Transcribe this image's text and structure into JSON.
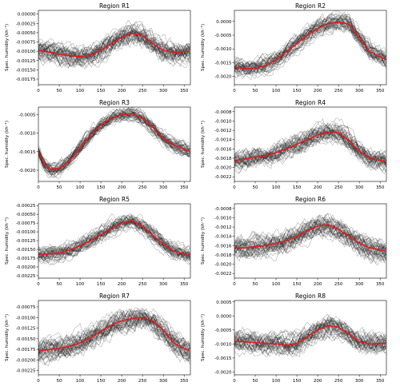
{
  "colors": {
    "ensemble": "#222222",
    "mean": "#e41a1c"
  },
  "chart_data": [
    {
      "type": "line",
      "title": "Region R1",
      "ylabel": "Spec. humidity (kh⁻¹)",
      "xlim": [
        0,
        365
      ],
      "ylim": [
        -0.0019,
        0.0001
      ],
      "xticks": [
        0,
        50,
        100,
        150,
        200,
        250,
        300,
        350
      ],
      "yticks": [
        0.0,
        -0.00025,
        -0.0005,
        -0.00075,
        -0.001,
        -0.00125,
        -0.0015,
        -0.00175
      ],
      "ytick_labels": [
        "0.00000",
        "-0.00025",
        "-0.00050",
        "-0.00075",
        "-0.00100",
        "-0.00125",
        "-0.00150",
        "-0.00175"
      ],
      "mean": {
        "x": [
          0,
          25,
          50,
          75,
          100,
          125,
          150,
          175,
          200,
          225,
          250,
          275,
          300,
          325,
          365
        ],
        "y": [
          -0.00098,
          -0.00102,
          -0.00108,
          -0.00112,
          -0.00115,
          -0.0011,
          -0.00097,
          -0.0008,
          -0.00062,
          -0.00052,
          -0.00058,
          -0.0008,
          -0.00098,
          -0.00103,
          -0.001
        ]
      },
      "ensemble": {
        "members": 40,
        "spread": 0.00028
      }
    },
    {
      "type": "line",
      "title": "Region R2",
      "ylabel": "Spec. humidity (kh⁻¹)",
      "xlim": [
        0,
        365
      ],
      "ylim": [
        -0.0023,
        0.0004
      ],
      "xticks": [
        0,
        50,
        100,
        150,
        200,
        250,
        300,
        350
      ],
      "yticks": [
        0.0,
        -0.0005,
        -0.001,
        -0.0015,
        -0.002
      ],
      "ytick_labels": [
        "0.0000",
        "-0.0005",
        "-0.0010",
        "-0.0015",
        "-0.0020"
      ],
      "mean": {
        "x": [
          0,
          25,
          50,
          75,
          100,
          125,
          150,
          175,
          200,
          225,
          250,
          275,
          300,
          325,
          365
        ],
        "y": [
          -0.00165,
          -0.00172,
          -0.0017,
          -0.0016,
          -0.0014,
          -0.0011,
          -0.0008,
          -0.0005,
          -0.00025,
          -8e-05,
          -2e-05,
          -0.0001,
          -0.0006,
          -0.0011,
          -0.0014
        ]
      },
      "ensemble": {
        "members": 40,
        "spread": 0.0003
      }
    },
    {
      "type": "line",
      "title": "Region R3",
      "ylabel": "Spec. humidity (kh⁻¹)",
      "xlim": [
        0,
        365
      ],
      "ylim": [
        -0.0023,
        -0.0003
      ],
      "xticks": [
        0,
        50,
        100,
        150,
        200,
        250,
        300,
        350
      ],
      "yticks": [
        -0.0005,
        -0.001,
        -0.0015,
        -0.002
      ],
      "ytick_labels": [
        "-0.0005",
        "-0.0010",
        "-0.0015",
        "-0.0020"
      ],
      "mean": {
        "x": [
          0,
          15,
          30,
          50,
          75,
          100,
          125,
          150,
          175,
          200,
          225,
          250,
          275,
          300,
          325,
          365
        ],
        "y": [
          -0.0015,
          -0.00185,
          -0.00198,
          -0.00195,
          -0.00175,
          -0.0014,
          -0.00105,
          -0.00078,
          -0.0006,
          -0.0005,
          -0.00048,
          -0.0006,
          -0.00085,
          -0.00115,
          -0.00132,
          -0.0015
        ]
      },
      "ensemble": {
        "members": 40,
        "spread": 0.00018
      }
    },
    {
      "type": "line",
      "title": "Region R4",
      "ylabel": "Spec. humidity (kh⁻¹)",
      "xlim": [
        0,
        365
      ],
      "ylim": [
        -0.0023,
        -0.0007
      ],
      "xticks": [
        0,
        50,
        100,
        150,
        200,
        250,
        300,
        350
      ],
      "yticks": [
        -0.0008,
        -0.001,
        -0.0012,
        -0.0014,
        -0.0016,
        -0.0018,
        -0.002,
        -0.0022
      ],
      "ytick_labels": [
        "-0.0008",
        "-0.0010",
        "-0.0012",
        "-0.0014",
        "-0.0016",
        "-0.0018",
        "-0.0020",
        "-0.0022"
      ],
      "mean": {
        "x": [
          0,
          25,
          50,
          75,
          100,
          125,
          150,
          175,
          200,
          225,
          250,
          275,
          300,
          325,
          365
        ],
        "y": [
          -0.00185,
          -0.00182,
          -0.00178,
          -0.00175,
          -0.00168,
          -0.0016,
          -0.0015,
          -0.0014,
          -0.0013,
          -0.00123,
          -0.00125,
          -0.00142,
          -0.00165,
          -0.0018,
          -0.00188
        ]
      },
      "ensemble": {
        "members": 40,
        "spread": 0.0002
      }
    },
    {
      "type": "line",
      "title": "Region R5",
      "ylabel": "Spec. humidity (kh⁻¹)",
      "xlim": [
        0,
        365
      ],
      "ylim": [
        -0.00232,
        -0.0002
      ],
      "xticks": [
        0,
        50,
        100,
        150,
        200,
        250,
        300,
        350
      ],
      "yticks": [
        -0.00025,
        -0.0005,
        -0.00075,
        -0.001,
        -0.00125,
        -0.0015,
        -0.00175,
        -0.002,
        -0.00225
      ],
      "ytick_labels": [
        "-0.00025",
        "-0.00050",
        "-0.00075",
        "-0.00100",
        "-0.00125",
        "-0.00150",
        "-0.00175",
        "-0.00200",
        "-0.00225"
      ],
      "mean": {
        "x": [
          0,
          25,
          50,
          75,
          100,
          125,
          150,
          175,
          200,
          225,
          250,
          275,
          300,
          325,
          365
        ],
        "y": [
          -0.00165,
          -0.00163,
          -0.0016,
          -0.00152,
          -0.0014,
          -0.00125,
          -0.00108,
          -0.0009,
          -0.00075,
          -0.00068,
          -0.00085,
          -0.0011,
          -0.00135,
          -0.00155,
          -0.00168
        ]
      },
      "ensemble": {
        "members": 40,
        "spread": 0.00022
      }
    },
    {
      "type": "line",
      "title": "Region R6",
      "ylabel": "Spec. humidity (kh⁻¹)",
      "xlim": [
        0,
        365
      ],
      "ylim": [
        -0.0023,
        -0.0007
      ],
      "xticks": [
        0,
        50,
        100,
        150,
        200,
        250,
        300,
        350
      ],
      "yticks": [
        -0.0008,
        -0.001,
        -0.0012,
        -0.0014,
        -0.0016,
        -0.0018,
        -0.002,
        -0.0022
      ],
      "ytick_labels": [
        "-0.0008",
        "-0.0010",
        "-0.0012",
        "-0.0014",
        "-0.0016",
        "-0.0018",
        "-0.0020",
        "-0.0022"
      ],
      "mean": {
        "x": [
          0,
          25,
          50,
          75,
          100,
          125,
          150,
          175,
          200,
          225,
          250,
          275,
          300,
          325,
          365
        ],
        "y": [
          -0.00165,
          -0.00165,
          -0.00162,
          -0.0016,
          -0.00155,
          -0.0015,
          -0.0014,
          -0.00128,
          -0.00118,
          -0.00115,
          -0.00125,
          -0.0014,
          -0.00155,
          -0.00165,
          -0.00172
        ]
      },
      "ensemble": {
        "members": 40,
        "spread": 0.00022
      }
    },
    {
      "type": "line",
      "title": "Region R7",
      "ylabel": "Spec. humidity (kh⁻¹)",
      "xlim": [
        0,
        365
      ],
      "ylim": [
        -0.00235,
        -0.0006
      ],
      "xticks": [
        0,
        50,
        100,
        150,
        200,
        250,
        300,
        350
      ],
      "yticks": [
        -0.00075,
        -0.001,
        -0.00125,
        -0.0015,
        -0.00175,
        -0.002,
        -0.00225
      ],
      "ytick_labels": [
        "-0.00075",
        "-0.00100",
        "-0.00125",
        "-0.00150",
        "-0.00175",
        "-0.00200",
        "-0.00225"
      ],
      "mean": {
        "x": [
          0,
          25,
          50,
          75,
          100,
          125,
          150,
          175,
          200,
          225,
          250,
          275,
          300,
          325,
          365
        ],
        "y": [
          -0.00178,
          -0.00176,
          -0.00172,
          -0.00168,
          -0.0016,
          -0.00148,
          -0.00132,
          -0.00118,
          -0.00108,
          -0.00102,
          -0.001,
          -0.00108,
          -0.0013,
          -0.0016,
          -0.0018
        ]
      },
      "ensemble": {
        "members": 40,
        "spread": 0.00025
      }
    },
    {
      "type": "line",
      "title": "Region R8",
      "ylabel": "Spec. humidity (kh⁻¹)",
      "xlim": [
        0,
        365
      ],
      "ylim": [
        -0.0021,
        0.00055
      ],
      "xticks": [
        0,
        50,
        100,
        150,
        200,
        250,
        300,
        350
      ],
      "yticks": [
        0.0005,
        0.0,
        -0.0005,
        -0.001,
        -0.0015,
        -0.002
      ],
      "ytick_labels": [
        "0.0005",
        "0.0000",
        "-0.0005",
        "-0.0010",
        "-0.0015",
        "-0.0020"
      ],
      "mean": {
        "x": [
          0,
          25,
          50,
          75,
          100,
          125,
          150,
          175,
          200,
          225,
          250,
          275,
          300,
          325,
          365
        ],
        "y": [
          -0.0009,
          -0.00092,
          -0.00095,
          -0.00098,
          -0.001,
          -0.00105,
          -0.00098,
          -0.00075,
          -0.0005,
          -0.00035,
          -0.0004,
          -0.00065,
          -0.00092,
          -0.001,
          -0.00098
        ]
      },
      "ensemble": {
        "members": 40,
        "spread": 0.00035
      }
    }
  ]
}
